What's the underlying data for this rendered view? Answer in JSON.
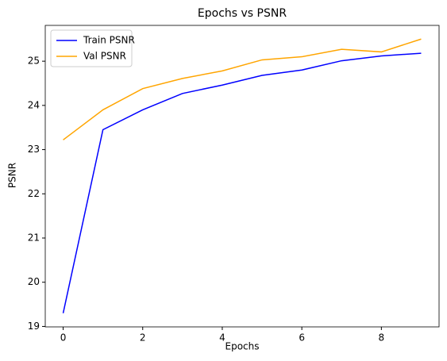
{
  "chart_data": {
    "type": "line",
    "title": "Epochs vs PSNR",
    "x_label": "Epochs",
    "y_label": "PSNR",
    "x": [
      0,
      1,
      2,
      3,
      4,
      5,
      6,
      7,
      8,
      9
    ],
    "series": [
      {
        "name": "Train PSNR",
        "color": "#0000ff",
        "values": [
          19.3,
          23.45,
          23.9,
          24.27,
          24.46,
          24.68,
          24.8,
          25.01,
          25.12,
          25.18
        ]
      },
      {
        "name": "Val PSNR",
        "color": "#ffa500",
        "values": [
          23.22,
          23.9,
          24.38,
          24.61,
          24.78,
          25.03,
          25.1,
          25.27,
          25.21,
          25.5
        ]
      }
    ],
    "xlim": [
      -0.45,
      9.45
    ],
    "xticks": [
      0,
      2,
      4,
      6,
      8
    ],
    "ylim": [
      18.99,
      25.81
    ],
    "yticks": [
      19,
      20,
      21,
      22,
      23,
      24,
      25
    ],
    "legend": "upper left"
  }
}
